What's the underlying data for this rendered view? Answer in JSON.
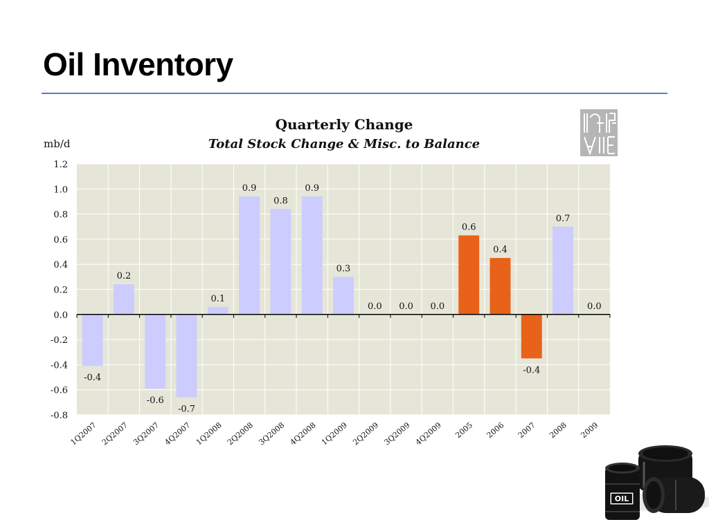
{
  "slide": {
    "title": "Oil Inventory"
  },
  "chart_data": {
    "type": "bar",
    "title": "Quarterly Change",
    "subtitle": "Total Stock Change & Misc. to Balance",
    "ylabel": "mb/d",
    "ylim": [
      -0.8,
      1.2
    ],
    "yticks": [
      "1.2",
      "1.0",
      "0.8",
      "0.6",
      "0.4",
      "0.2",
      "0.0",
      "-0.2",
      "-0.4",
      "-0.6",
      "-0.8"
    ],
    "ytick_values": [
      1.2,
      1.0,
      0.8,
      0.6,
      0.4,
      0.2,
      0.0,
      -0.2,
      -0.4,
      -0.6,
      -0.8
    ],
    "grid": true,
    "categories": [
      "1Q2007",
      "2Q2007",
      "3Q2007",
      "4Q2007",
      "1Q2008",
      "2Q2008",
      "3Q2008",
      "4Q2008",
      "1Q2009",
      "2Q2009",
      "3Q2009",
      "4Q2009",
      "2005",
      "2006",
      "2007",
      "2008",
      "2009"
    ],
    "values": [
      -0.41,
      0.24,
      -0.59,
      -0.66,
      0.06,
      0.94,
      0.84,
      0.94,
      0.3,
      0.0,
      0.0,
      0.0,
      0.63,
      0.45,
      -0.35,
      0.7,
      0.0
    ],
    "data_labels": [
      "-0.4",
      "0.2",
      "-0.6",
      "-0.7",
      "0.1",
      "0.9",
      "0.8",
      "0.9",
      "0.3",
      "0.0",
      "0.0",
      "0.0",
      "0.6",
      "0.4",
      "-0.4",
      "0.7",
      "0.0"
    ],
    "bar_colors": [
      "#ccccff",
      "#ccccff",
      "#ccccff",
      "#ccccff",
      "#ccccff",
      "#ccccff",
      "#ccccff",
      "#ccccff",
      "#ccccff",
      "#ccccff",
      "#ccccff",
      "#ccccff",
      "#e8621a",
      "#e8621a",
      "#e8621a",
      "#ccccff",
      "#ccccff"
    ],
    "plot_background": "#e6e6d8"
  },
  "logo": {
    "top_text": "IEA",
    "bottom_text": "AIE"
  },
  "barrels": {
    "label": "OIL"
  }
}
